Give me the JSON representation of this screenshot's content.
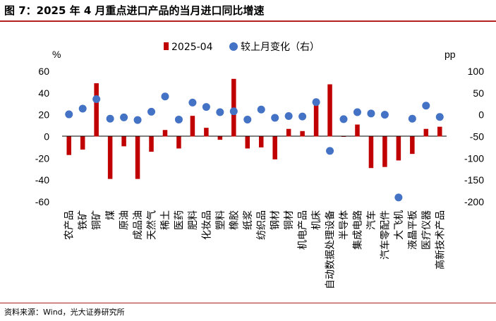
{
  "title": "图 7：2025 年 4 月重点进口产品的当月进口同比增速",
  "source": "资料来源：Wind，光大证券研究所",
  "chart_data": {
    "type": "bar",
    "left_axis_unit": "%",
    "right_axis_unit": "pp",
    "ylim": [
      -60,
      60
    ],
    "y_ticks": [
      "60",
      "40",
      "20",
      "0",
      "-20",
      "-40",
      "-60"
    ],
    "y2lim": [
      -200,
      100
    ],
    "y2_ticks": [
      "100",
      "50",
      "0",
      "-50",
      "-100",
      "-150",
      "-200"
    ],
    "legend_position": "top",
    "categories": [
      "农产品",
      "铁矿",
      "铜矿",
      "煤",
      "原油",
      "成品油",
      "天然气",
      "稀土",
      "医药",
      "肥料",
      "化妆品",
      "塑料",
      "橡胶",
      "纸浆",
      "纺织品",
      "钢材",
      "铜材",
      "机电产品",
      "机床",
      "自动数据处理设备",
      "半导体",
      "集成电路",
      "汽车",
      "汽车零配件",
      "大飞机",
      "液晶平板",
      "医疗仪器",
      "高新技术产品"
    ],
    "series": [
      {
        "name": "2025-04",
        "kind": "bar",
        "axis": "left",
        "color": "#c00000",
        "values": [
          -17,
          -12,
          49,
          -39,
          -9,
          -39,
          -14,
          6,
          -11,
          19,
          8,
          -3,
          53,
          -11,
          -10,
          -21,
          7,
          5,
          29,
          48,
          0,
          11,
          -29,
          -28,
          -22,
          -16,
          7,
          9
        ]
      },
      {
        "name": "较上月变化（右）",
        "kind": "scatter",
        "axis": "right",
        "color": "#4472c4",
        "values": [
          1,
          14,
          36,
          -9,
          -6,
          -12,
          7,
          42,
          -11,
          28,
          18,
          6,
          8,
          -11,
          12,
          -7,
          -3,
          -4,
          29,
          -83,
          -10,
          6,
          3,
          0,
          -190,
          -9,
          21,
          -5
        ]
      }
    ]
  }
}
